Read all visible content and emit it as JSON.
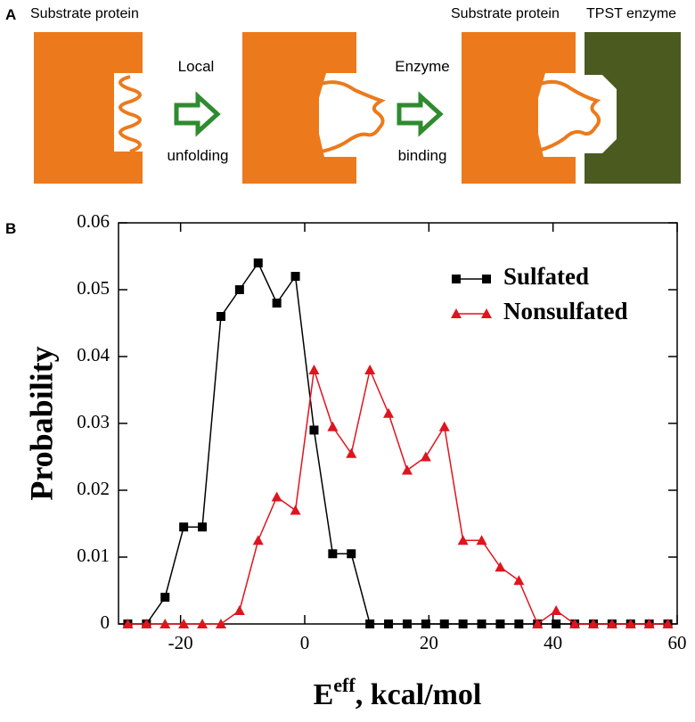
{
  "panel_a": {
    "label": "A",
    "left_title": "Substrate protein",
    "arrow1_top": "Local",
    "arrow1_bottom": "unfolding",
    "arrow2_top": "Enzyme",
    "arrow2_bottom": "binding",
    "right_title_substrate": "Substrate protein",
    "right_title_enzyme": "TPST enzyme"
  },
  "panel_b": {
    "label": "B"
  },
  "chart_data": {
    "type": "line",
    "ylabel": "Probability",
    "xlabel": [
      "E",
      "eff",
      ", kcal/mol"
    ],
    "x": [
      -28.5,
      -25.5,
      -22.5,
      -19.5,
      -16.5,
      -13.5,
      -10.5,
      -7.5,
      -4.5,
      -1.5,
      1.5,
      4.5,
      7.5,
      10.5,
      13.5,
      16.5,
      19.5,
      22.5,
      25.5,
      28.5,
      31.5,
      34.5,
      37.5,
      40.5,
      43.5,
      46.5,
      49.5,
      52.5,
      55.5,
      58.5
    ],
    "series": [
      {
        "name": "Sulfated",
        "color": "#000000",
        "marker": "square",
        "values": [
          0,
          0,
          0.004,
          0.0145,
          0.0145,
          0.046,
          0.05,
          0.054,
          0.048,
          0.052,
          0.029,
          0.0105,
          0.0105,
          0,
          0,
          0,
          0,
          0,
          0,
          0,
          0,
          0,
          0,
          0,
          0,
          0,
          0,
          0,
          0,
          0
        ]
      },
      {
        "name": "Nonsulfated",
        "color": "#e0141e",
        "marker": "triangle",
        "values": [
          0,
          0,
          0,
          0,
          0,
          0,
          0.002,
          0.0125,
          0.019,
          0.017,
          0.038,
          0.0295,
          0.0255,
          0.038,
          0.0315,
          0.023,
          0.025,
          0.0295,
          0.0125,
          0.0125,
          0.0085,
          0.0065,
          0,
          0.002,
          0,
          0,
          0,
          0,
          0,
          0
        ]
      }
    ],
    "xlim": [
      -30,
      60
    ],
    "xticks": [
      -20,
      0,
      20,
      40,
      60
    ],
    "ylim": [
      0,
      0.06
    ],
    "yticks": [
      0,
      0.01,
      0.02,
      0.03,
      0.04,
      0.05,
      0.06
    ],
    "legend": "upper right"
  }
}
